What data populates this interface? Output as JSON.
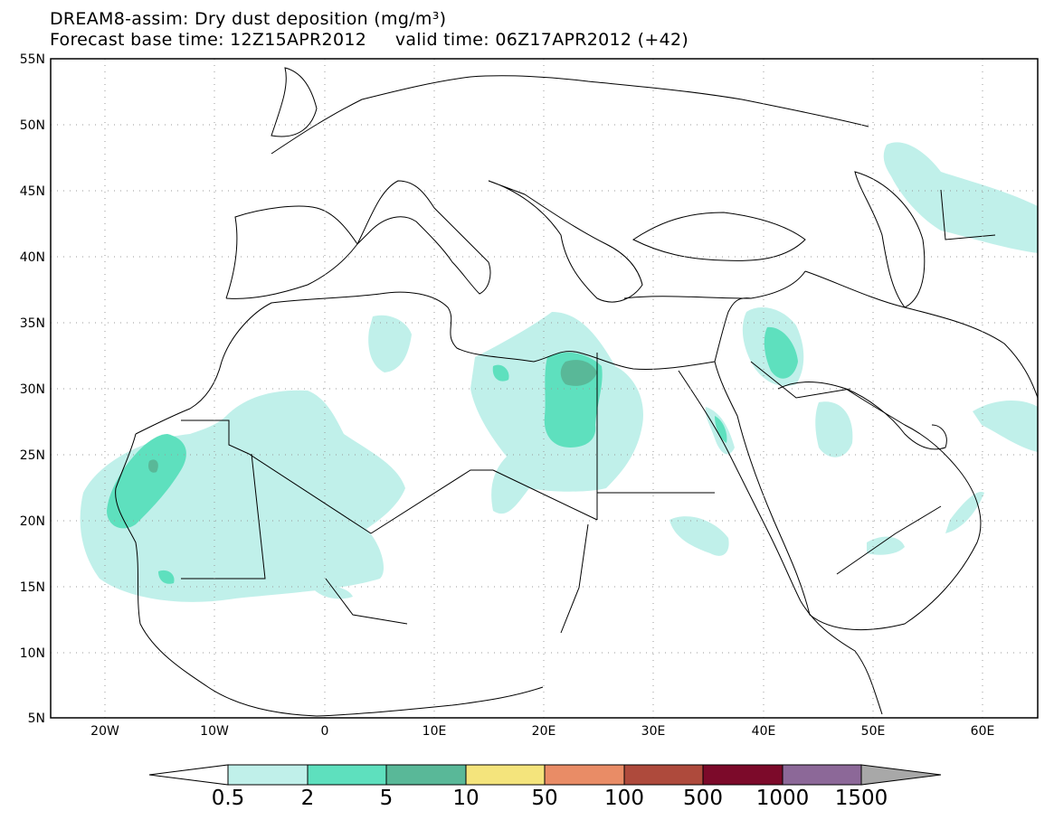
{
  "header": {
    "title": "DREAM8-assim: Dry dust deposition (mg/m³)",
    "subtitle": "Forecast base time: 12Z15APR2012     valid time: 06Z17APR2012 (+42)"
  },
  "map": {
    "region": "North Africa, Middle East and Europe",
    "projection": "lat-lon",
    "lon_range": [
      -25,
      65
    ],
    "lat_range": [
      5,
      55
    ],
    "grid": "dotted",
    "lat_ticks": [
      "55N",
      "50N",
      "45N",
      "40N",
      "35N",
      "30N",
      "25N",
      "20N",
      "15N",
      "10N",
      "5N"
    ],
    "lon_ticks": [
      "20W",
      "10W",
      "0",
      "10E",
      "20E",
      "30E",
      "40E",
      "50E",
      "60E"
    ]
  },
  "colorbar": {
    "levels": [
      "0.5",
      "2",
      "5",
      "10",
      "50",
      "100",
      "500",
      "1000",
      "1500"
    ],
    "colors": [
      "#c0f0ea",
      "#5ee0be",
      "#59b898",
      "#f4e47c",
      "#e98c66",
      "#ae4a3c",
      "#7c0a2a",
      "#8c6898",
      "#a8a8a8"
    ]
  }
}
